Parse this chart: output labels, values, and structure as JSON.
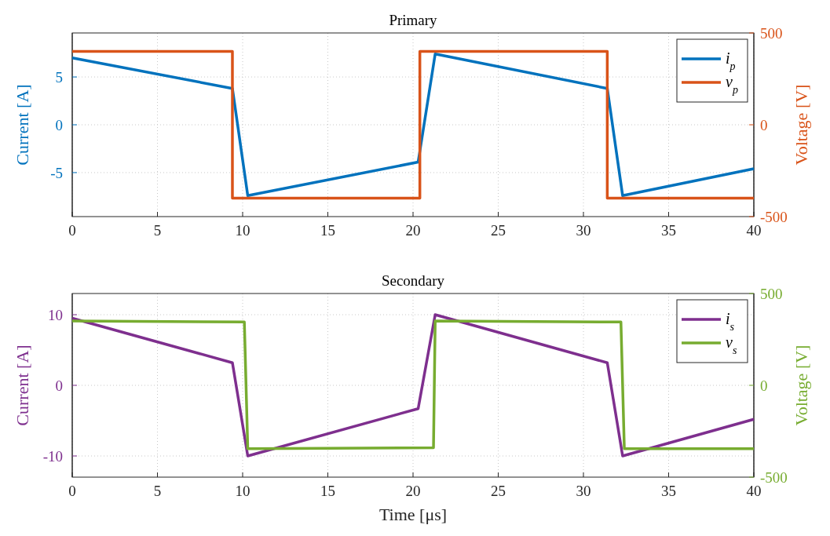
{
  "chart_data": [
    {
      "type": "line",
      "title": "Primary",
      "ylabel": "Current [A]",
      "y2label": "Voltage [V]",
      "xlim": [
        0,
        40
      ],
      "xticks": [
        0,
        5,
        10,
        15,
        20,
        25,
        30,
        35,
        40
      ],
      "ylim": [
        -9.6,
        9.6
      ],
      "yticks": [
        -5,
        0,
        5
      ],
      "y2lim": [
        -500,
        500
      ],
      "y2ticks": [
        -500,
        0,
        500
      ],
      "grid": true,
      "legend": "top right",
      "line_style": "solid",
      "series": [
        {
          "name": "i$_{p}$",
          "color": "#0072bd",
          "x": [
            0,
            9.4,
            10.3,
            20.3,
            21.3,
            31.4,
            32.3,
            40
          ],
          "values": [
            7.0,
            3.8,
            -7.4,
            -3.9,
            7.4,
            3.8,
            -7.4,
            -4.6
          ]
        },
        {
          "name": "v$_{p}$",
          "color": "#d95319",
          "axis": "y2",
          "x": [
            0,
            9.4,
            9.4,
            20.4,
            20.4,
            31.4,
            31.4,
            40
          ],
          "values": [
            400,
            400,
            -400,
            -400,
            400,
            400,
            -400,
            -400
          ]
        }
      ]
    },
    {
      "type": "line",
      "title": "Secondary",
      "xlabel": "Time [μs]",
      "ylabel": "Current [A]",
      "y2label": "Voltage [V]",
      "xlim": [
        0,
        40
      ],
      "xticks": [
        0,
        5,
        10,
        15,
        20,
        25,
        30,
        35,
        40
      ],
      "ylim": [
        -13,
        13
      ],
      "yticks": [
        -10,
        0,
        10
      ],
      "y2lim": [
        -500,
        500
      ],
      "y2ticks": [
        -500,
        0,
        500
      ],
      "grid": true,
      "legend": "top right",
      "line_style": "solid",
      "series": [
        {
          "name": "i$_{s}$",
          "color": "#7e2f8e",
          "x": [
            0,
            9.4,
            10.3,
            20.3,
            21.3,
            31.4,
            32.3,
            40
          ],
          "values": [
            9.5,
            3.2,
            -10,
            -3.3,
            10,
            3.2,
            -10,
            -4.8
          ]
        },
        {
          "name": "v$_{s}$",
          "color": "#77ac30",
          "axis": "y2",
          "x": [
            0,
            10.1,
            10.3,
            21.2,
            21.3,
            32.2,
            32.4,
            40
          ],
          "values": [
            350,
            345,
            -345,
            -340,
            350,
            345,
            -345,
            -345
          ]
        }
      ]
    }
  ]
}
